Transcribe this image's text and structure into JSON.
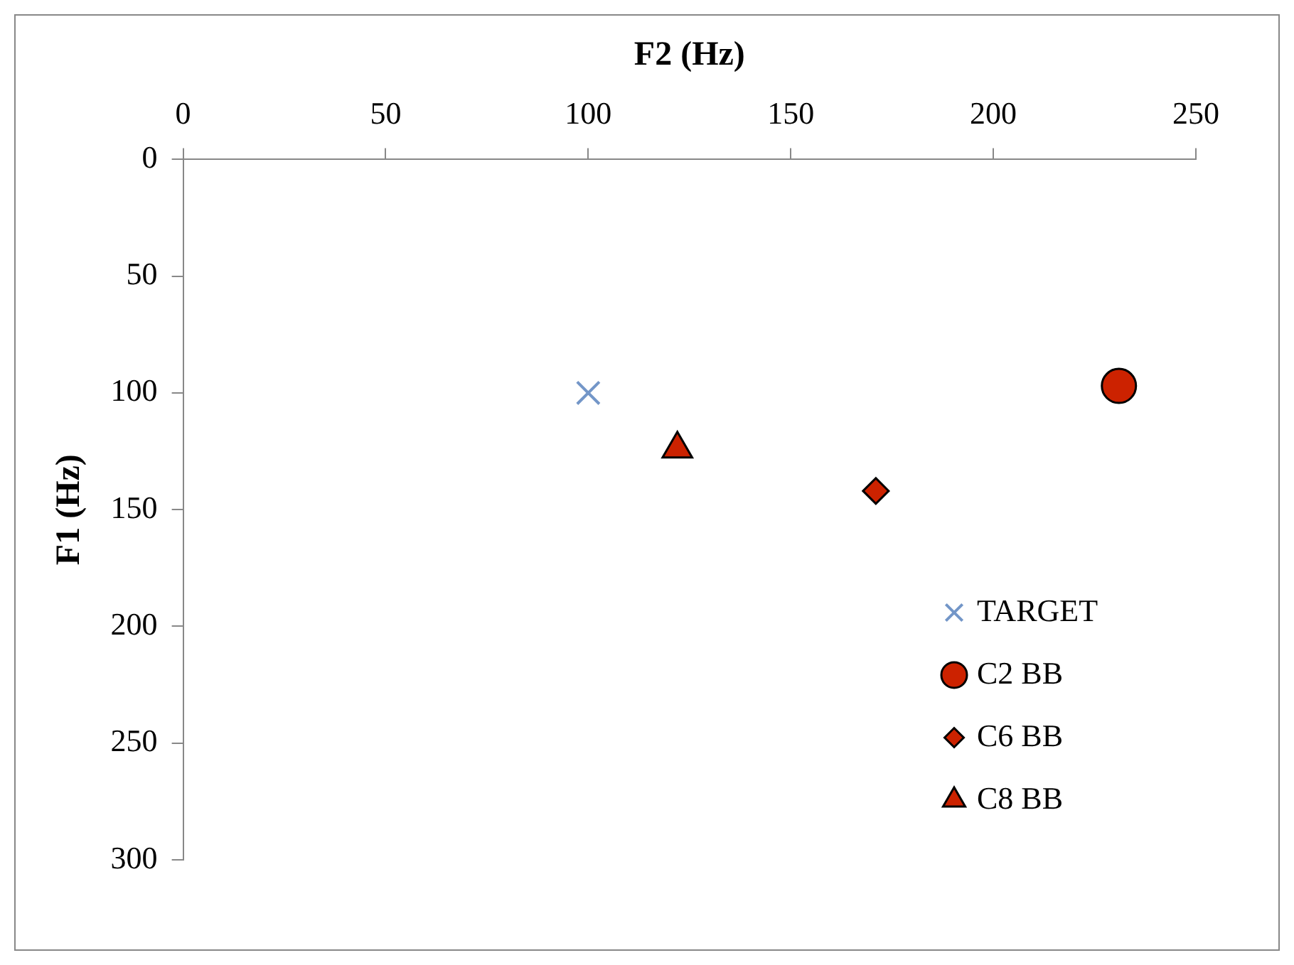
{
  "chart_data": {
    "type": "scatter",
    "xlabel": "F2 (Hz)",
    "ylabel": "F1 (Hz)",
    "xlim": [
      0,
      250
    ],
    "xticks": [
      0,
      50,
      100,
      150,
      200,
      250
    ],
    "ylim": [
      300,
      0
    ],
    "yticks": [
      0,
      50,
      100,
      150,
      200,
      250,
      300
    ],
    "grid": false,
    "legend": "bottom right",
    "series": [
      {
        "name": "TARGET",
        "color": "#7396c8",
        "marker": "cross",
        "x": [
          100
        ],
        "values": [
          100
        ]
      },
      {
        "name": "C2 BB",
        "color": "#cc2200",
        "marker": "circle",
        "x": [
          231
        ],
        "values": [
          97
        ]
      },
      {
        "name": "C6 BB",
        "color": "#cc2200",
        "marker": "diamond",
        "x": [
          171
        ],
        "values": [
          142
        ]
      },
      {
        "name": "C8 BB",
        "color": "#cc2200",
        "marker": "triangle",
        "x": [
          122
        ],
        "values": [
          124
        ]
      }
    ]
  }
}
